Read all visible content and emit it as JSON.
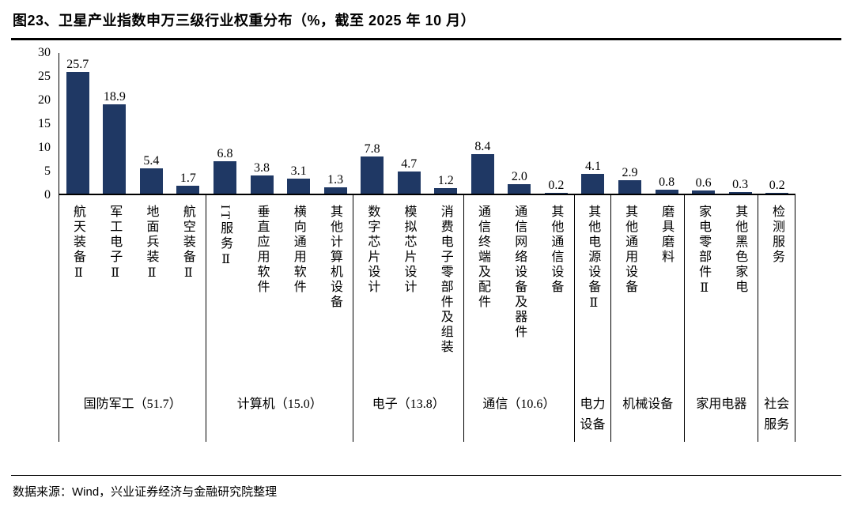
{
  "title": "图23、卫星产业指数申万三级行业权重分布（%，截至 2025 年 10 月）",
  "source": "数据来源：Wind，兴业证券经济与金融研究院整理",
  "colors": {
    "bar": "#1F3864",
    "axis": "#000000"
  },
  "chart_data": {
    "type": "bar",
    "title": "卫星产业指数申万三级行业权重分布（%，截至 2025 年 10 月）",
    "xlabel": "",
    "ylabel": "",
    "ylim": [
      0,
      30
    ],
    "yticks": [
      0,
      5,
      10,
      15,
      20,
      25,
      30
    ],
    "grid": false,
    "legend": "none",
    "bar_color": "#1F3864",
    "groups": [
      {
        "label": "国防军工（51.7）",
        "categories": [
          "航天装备Ⅱ",
          "军工电子Ⅱ",
          "地面兵装Ⅱ",
          "航空装备Ⅱ"
        ],
        "values": [
          25.7,
          18.9,
          5.4,
          1.7
        ]
      },
      {
        "label": "计算机（15.0）",
        "categories": [
          "IT服务Ⅱ",
          "垂直应用软件",
          "横向通用软件",
          "其他计算机设备"
        ],
        "values": [
          6.8,
          3.8,
          3.1,
          1.3
        ]
      },
      {
        "label": "电子（13.8）",
        "categories": [
          "数字芯片设计",
          "模拟芯片设计",
          "消费电子零部件及组装"
        ],
        "values": [
          7.8,
          4.7,
          1.2
        ]
      },
      {
        "label": "通信（10.6）",
        "categories": [
          "通信终端及配件",
          "通信网络设备及器件",
          "其他通信设备"
        ],
        "values": [
          8.4,
          2.0,
          0.2
        ]
      },
      {
        "label": "电力设备",
        "categories": [
          "其他电源设备Ⅱ"
        ],
        "values": [
          4.1
        ]
      },
      {
        "label": "机械设备",
        "categories": [
          "其他通用设备",
          "磨具磨料"
        ],
        "values": [
          2.9,
          0.8
        ]
      },
      {
        "label": "家用电器",
        "categories": [
          "家电零部件Ⅱ",
          "其他黑色家电"
        ],
        "values": [
          0.6,
          0.3
        ]
      },
      {
        "label": "社会服务",
        "categories": [
          "检测服务"
        ],
        "values": [
          0.2
        ]
      }
    ]
  }
}
